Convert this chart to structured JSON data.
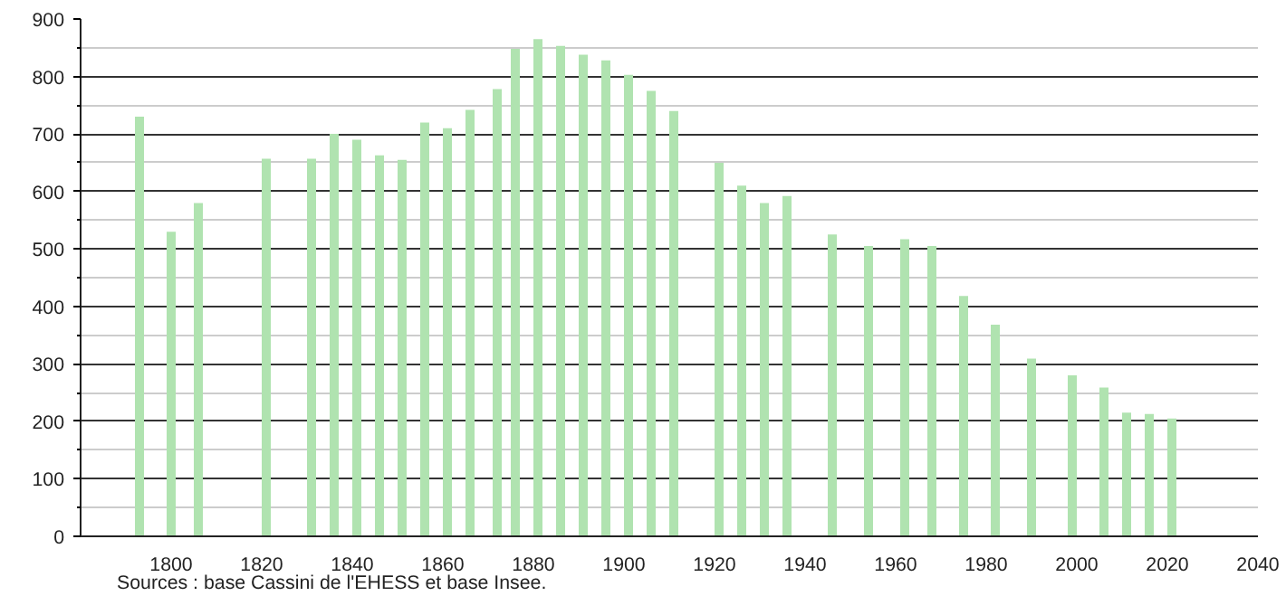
{
  "chart_data": {
    "type": "bar",
    "x": [
      1793,
      1800,
      1806,
      1821,
      1831,
      1836,
      1841,
      1846,
      1851,
      1856,
      1861,
      1866,
      1872,
      1876,
      1881,
      1886,
      1891,
      1896,
      1901,
      1906,
      1911,
      1921,
      1926,
      1931,
      1936,
      1946,
      1954,
      1962,
      1968,
      1975,
      1982,
      1990,
      1999,
      2006,
      2011,
      2016,
      2021
    ],
    "values": [
      730,
      530,
      580,
      657,
      657,
      700,
      690,
      663,
      655,
      720,
      710,
      742,
      778,
      848,
      865,
      853,
      838,
      828,
      803,
      775,
      740,
      650,
      610,
      580,
      592,
      525,
      505,
      517,
      505,
      418,
      368,
      309,
      280,
      259,
      215,
      213,
      205
    ],
    "color": "#b0e3b0",
    "xlim": [
      1780,
      2040
    ],
    "xticks": [
      1800,
      1820,
      1840,
      1860,
      1880,
      1900,
      1920,
      1940,
      1960,
      1980,
      2000,
      2020,
      2040
    ],
    "ylim": [
      0,
      900
    ],
    "yticks": [
      0,
      100,
      200,
      300,
      400,
      500,
      600,
      700,
      800,
      900
    ],
    "grid": "y",
    "annotations": [
      "Sources : base Cassini de l'EHESS et base Insee."
    ]
  }
}
